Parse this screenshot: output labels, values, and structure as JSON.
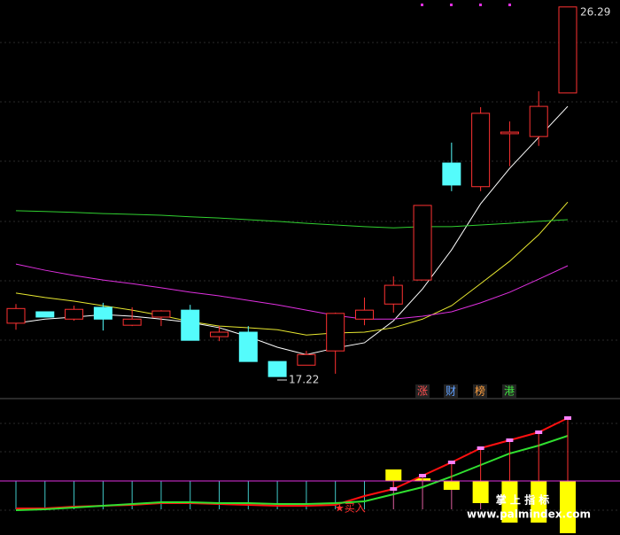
{
  "chart_data": [
    {
      "type": "candlestick",
      "categories": [
        null,
        null,
        null,
        null,
        null,
        null,
        null,
        null,
        null,
        null,
        null,
        null,
        null,
        null,
        null,
        null,
        null,
        null,
        null,
        null
      ],
      "open": [
        18.53,
        18.81,
        18.63,
        18.92,
        18.48,
        18.68,
        18.85,
        18.2,
        18.31,
        17.59,
        17.5,
        17.85,
        18.63,
        19.0,
        19.59,
        22.46,
        21.88,
        23.18,
        23.11,
        24.18
      ],
      "high": [
        19.0,
        18.81,
        18.96,
        19.03,
        18.92,
        18.85,
        18.98,
        18.46,
        18.46,
        17.59,
        17.85,
        18.79,
        19.16,
        19.68,
        21.42,
        22.96,
        23.83,
        23.48,
        24.22,
        26.29
      ],
      "low": [
        18.37,
        18.68,
        18.59,
        18.35,
        18.46,
        18.46,
        18.11,
        18.09,
        17.59,
        17.22,
        17.5,
        17.29,
        18.48,
        18.79,
        19.59,
        21.77,
        21.77,
        22.38,
        22.88,
        24.18
      ],
      "close": [
        18.89,
        18.68,
        18.87,
        18.63,
        18.63,
        18.83,
        18.11,
        18.31,
        17.59,
        17.22,
        17.76,
        18.77,
        18.85,
        19.46,
        21.42,
        21.92,
        23.68,
        23.22,
        23.85,
        26.29
      ],
      "up_color": "#ff3232",
      "down_color": "#54fcfc",
      "series": [
        {
          "color": "#ffffff",
          "values": [
            18.53,
            18.63,
            18.68,
            18.74,
            18.7,
            18.63,
            18.55,
            18.42,
            18.2,
            17.94,
            17.76,
            17.92,
            18.05,
            18.59,
            19.37,
            20.33,
            21.46,
            22.33,
            23.09,
            23.85
          ]
        },
        {
          "color": "#e8e830",
          "values": [
            19.27,
            19.16,
            19.07,
            18.96,
            18.85,
            18.72,
            18.57,
            18.46,
            18.42,
            18.37,
            18.24,
            18.29,
            18.31,
            18.42,
            18.63,
            18.96,
            19.5,
            20.05,
            20.7,
            21.5
          ]
        },
        {
          "color": "#e030e0",
          "values": [
            19.98,
            19.83,
            19.7,
            19.59,
            19.5,
            19.4,
            19.29,
            19.2,
            19.09,
            18.98,
            18.85,
            18.72,
            18.63,
            18.63,
            18.7,
            18.81,
            19.03,
            19.29,
            19.61,
            19.94
          ]
        },
        {
          "color": "#30d030",
          "values": [
            21.29,
            21.27,
            21.25,
            21.22,
            21.2,
            21.18,
            21.14,
            21.11,
            21.07,
            21.03,
            20.98,
            20.94,
            20.9,
            20.87,
            20.9,
            20.9,
            20.94,
            20.98,
            21.03,
            21.07
          ]
        }
      ],
      "ylim": [
        16.68,
        26.46
      ],
      "high_label": 26.29,
      "low_label": 17.22
    },
    {
      "type": "indicator",
      "categories": [
        null,
        null,
        null,
        null,
        null,
        null,
        null,
        null,
        null,
        null,
        null,
        null,
        null,
        null,
        null,
        null,
        null,
        null,
        null,
        null
      ],
      "values": [
        null,
        null,
        null,
        null,
        null,
        null,
        null,
        null,
        null,
        null,
        null,
        null,
        null,
        13,
        3,
        -10,
        -25,
        -47,
        -47,
        -59
      ],
      "color": "#ffff00",
      "series": [
        {
          "color": "#ff1010",
          "values": [
            -31,
            -31,
            -29,
            -28,
            -27,
            -25,
            -25,
            -26,
            -27,
            -28,
            -28,
            -27,
            -17,
            -9,
            6,
            21,
            37,
            46,
            55,
            71
          ]
        },
        {
          "color": "#30e030",
          "values": [
            -33,
            -32,
            -30,
            -28,
            -26,
            -24,
            -24,
            -25,
            -25,
            -26,
            -26,
            -25,
            -23,
            -15,
            -7,
            5,
            18,
            31,
            40,
            51
          ]
        }
      ],
      "marker_color": "#ff80ff",
      "ylim": [
        -61,
        93
      ]
    }
  ],
  "labels": {
    "tags": [
      "涨",
      "财",
      "榜",
      "港"
    ],
    "buy": "★买入",
    "watermark_title": "掌 上 指 标",
    "watermark_url": "www.palmindex.com"
  }
}
